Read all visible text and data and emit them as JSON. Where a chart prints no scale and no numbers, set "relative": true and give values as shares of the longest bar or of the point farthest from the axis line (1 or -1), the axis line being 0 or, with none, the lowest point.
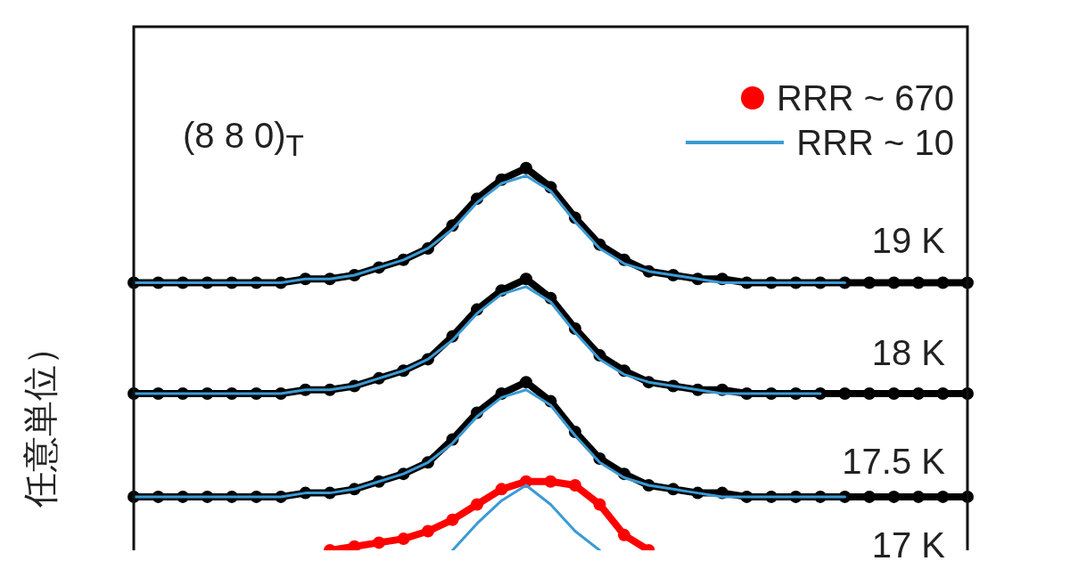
{
  "chart_data": {
    "type": "line",
    "relative": true,
    "ylabel": "任意単位）",
    "legend": "top right",
    "annotations": [
      "(8 8 0)$_{T}$",
      "19 K",
      "18 K",
      "17.5 K",
      "17 K"
    ],
    "categories": [
      null,
      null,
      null,
      null,
      null,
      null,
      null,
      null,
      null,
      null,
      null,
      null,
      null,
      null,
      null,
      null,
      null,
      null,
      null,
      null,
      null,
      null,
      null,
      null,
      null,
      null,
      null,
      null,
      null,
      null,
      null,
      null,
      null,
      null,
      null
    ],
    "series": [
      {
        "color": "#000000",
        "marker": "circle",
        "values": [
          0.7,
          0.7,
          0.7,
          0.7,
          0.7,
          0.7,
          0.7,
          0.71,
          0.71,
          0.72,
          0.74,
          0.76,
          0.79,
          0.85,
          0.92,
          0.97,
          1.0,
          0.95,
          0.87,
          0.8,
          0.76,
          0.73,
          0.72,
          0.71,
          0.71,
          0.7,
          0.7,
          0.7,
          0.7,
          0.7,
          0.7,
          0.7,
          0.7,
          0.7,
          0.7
        ]
      },
      {
        "color": "#3a9bd5",
        "marker": "none",
        "values": [
          0.7,
          0.7,
          0.7,
          0.7,
          0.7,
          0.7,
          0.7,
          0.71,
          0.71,
          0.72,
          0.74,
          0.76,
          0.79,
          0.84,
          0.91,
          0.96,
          0.98,
          0.94,
          0.86,
          0.79,
          0.75,
          0.73,
          0.72,
          0.71,
          0.7,
          0.7,
          0.7,
          0.7,
          0.7,
          0.7,
          null,
          null,
          null,
          null,
          null
        ]
      },
      {
        "color": "#000000",
        "marker": "circle",
        "values": [
          0.41,
          0.41,
          0.41,
          0.41,
          0.41,
          0.41,
          0.41,
          0.42,
          0.42,
          0.43,
          0.45,
          0.47,
          0.5,
          0.56,
          0.63,
          0.68,
          0.71,
          0.66,
          0.58,
          0.51,
          0.47,
          0.44,
          0.43,
          0.42,
          0.42,
          0.41,
          0.41,
          0.41,
          0.41,
          0.41,
          0.41,
          0.41,
          0.41,
          0.41,
          0.41
        ]
      },
      {
        "color": "#3a9bd5",
        "marker": "none",
        "values": [
          0.41,
          0.41,
          0.41,
          0.41,
          0.41,
          0.41,
          0.41,
          0.42,
          0.42,
          0.43,
          0.45,
          0.47,
          0.5,
          0.55,
          0.62,
          0.67,
          0.69,
          0.65,
          0.57,
          0.5,
          0.46,
          0.44,
          0.43,
          0.42,
          0.41,
          0.41,
          0.41,
          0.41,
          0.41,
          null,
          null,
          null,
          null,
          null,
          null
        ]
      },
      {
        "color": "#000000",
        "marker": "circle",
        "values": [
          0.14,
          0.14,
          0.14,
          0.14,
          0.14,
          0.14,
          0.14,
          0.15,
          0.15,
          0.16,
          0.18,
          0.2,
          0.23,
          0.29,
          0.36,
          0.41,
          0.44,
          0.39,
          0.31,
          0.24,
          0.2,
          0.17,
          0.16,
          0.15,
          0.15,
          0.14,
          0.14,
          0.14,
          0.14,
          0.14,
          0.14,
          0.14,
          0.14,
          0.14,
          0.14
        ]
      },
      {
        "color": "#3a9bd5",
        "marker": "none",
        "values": [
          0.14,
          0.14,
          0.14,
          0.14,
          0.14,
          0.14,
          0.14,
          0.15,
          0.15,
          0.16,
          0.18,
          0.2,
          0.23,
          0.28,
          0.35,
          0.4,
          0.42,
          0.38,
          0.3,
          0.23,
          0.19,
          0.17,
          0.16,
          0.15,
          0.14,
          0.14,
          0.14,
          0.14,
          0.14,
          0.14,
          null,
          null,
          null,
          null,
          null
        ]
      },
      {
        "name": "RRR ~ 670",
        "color": "#ff0000",
        "marker": "circle",
        "values": [
          null,
          null,
          null,
          null,
          null,
          null,
          null,
          null,
          0.0,
          0.01,
          0.02,
          0.03,
          0.05,
          0.08,
          0.12,
          0.16,
          0.18,
          0.18,
          0.17,
          0.12,
          0.04,
          0.0,
          null,
          null,
          null,
          null,
          null,
          null,
          null,
          null,
          null,
          null,
          null,
          null,
          null
        ]
      },
      {
        "name": "RRR ~ 10",
        "color": "#3a9bd5",
        "marker": "none",
        "values": [
          null,
          null,
          null,
          null,
          null,
          null,
          null,
          null,
          null,
          null,
          null,
          null,
          null,
          0.0,
          0.07,
          0.13,
          0.17,
          0.12,
          0.05,
          0.0,
          null,
          null,
          null,
          null,
          null,
          null,
          null,
          null,
          null,
          null,
          null,
          null,
          null,
          null,
          null
        ]
      }
    ]
  }
}
